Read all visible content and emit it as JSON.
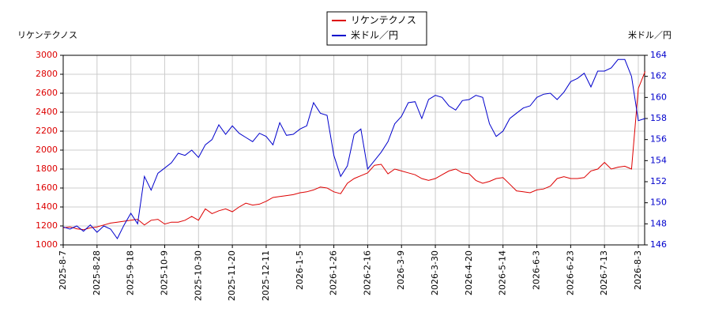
{
  "chart_data": {
    "type": "line",
    "y_label": "リケンテクノス",
    "y2_label": "米ドル／円",
    "categories": [
      "2025-8-7",
      null,
      null,
      null,
      null,
      "2025-8-28",
      null,
      null,
      null,
      null,
      "2025-9-18",
      null,
      null,
      null,
      null,
      "2025-10-9",
      null,
      null,
      null,
      null,
      "2025-10-30",
      null,
      null,
      null,
      null,
      "2025-11-20",
      null,
      null,
      null,
      null,
      "2025-12-11",
      null,
      null,
      null,
      null,
      "2026-1-5",
      null,
      null,
      null,
      null,
      "2026-1-26",
      null,
      null,
      null,
      null,
      "2026-2-16",
      null,
      null,
      null,
      null,
      "2026-3-9",
      null,
      null,
      null,
      null,
      "2026-3-30",
      null,
      null,
      null,
      null,
      "2026-4-20",
      null,
      null,
      null,
      null,
      "2026-5-14",
      null,
      null,
      null,
      null,
      "2026-6-3",
      null,
      null,
      null,
      null,
      "2026-6-23",
      null,
      null,
      null,
      null,
      "2026-7-13",
      null,
      null,
      null,
      null,
      "2026-8-3",
      null
    ],
    "series": [
      {
        "name": "リケンテクノス",
        "color": "#dd0000",
        "axis": "y",
        "values": [
          1180,
          1190,
          1170,
          1160,
          1180,
          1190,
          1210,
          1230,
          1240,
          1250,
          1260,
          1270,
          1210,
          1260,
          1270,
          1220,
          1240,
          1240,
          1260,
          1300,
          1260,
          1380,
          1330,
          1360,
          1380,
          1350,
          1400,
          1440,
          1420,
          1430,
          1460,
          1500,
          1510,
          1520,
          1530,
          1550,
          1560,
          1580,
          1610,
          1600,
          1560,
          1540,
          1650,
          1700,
          1730,
          1760,
          1840,
          1850,
          1750,
          1800,
          1780,
          1760,
          1740,
          1700,
          1680,
          1700,
          1740,
          1780,
          1800,
          1760,
          1750,
          1680,
          1650,
          1670,
          1700,
          1710,
          1640,
          1570,
          1560,
          1550,
          1580,
          1590,
          1620,
          1700,
          1720,
          1700,
          1700,
          1710,
          1780,
          1800,
          1870,
          1800,
          1820,
          1830,
          1800,
          2650,
          2830
        ]
      },
      {
        "name": "米ドル／円",
        "color": "#0000cc",
        "axis": "y2",
        "values": [
          147.7,
          147.5,
          147.8,
          147.3,
          147.9,
          147.2,
          147.8,
          147.5,
          146.6,
          147.9,
          149.0,
          148.0,
          152.5,
          151.2,
          152.8,
          153.3,
          153.8,
          154.7,
          154.5,
          155.0,
          154.3,
          155.5,
          156.0,
          157.4,
          156.5,
          157.3,
          156.6,
          156.2,
          155.8,
          156.6,
          156.3,
          155.5,
          157.6,
          156.4,
          156.5,
          157.0,
          157.3,
          159.5,
          158.5,
          158.3,
          154.5,
          152.5,
          153.5,
          156.5,
          157.0,
          153.2,
          154.0,
          154.8,
          155.8,
          157.5,
          158.2,
          159.5,
          159.6,
          158.0,
          159.8,
          160.2,
          160.0,
          159.2,
          158.8,
          159.7,
          159.8,
          160.2,
          160.0,
          157.5,
          156.3,
          156.8,
          158.0,
          158.5,
          159.0,
          159.2,
          160.0,
          160.3,
          160.4,
          159.8,
          160.5,
          161.5,
          161.8,
          162.3,
          161.0,
          162.5,
          162.5,
          162.8,
          163.6,
          163.6,
          162.0,
          157.8,
          158.0
        ]
      }
    ],
    "ylim": [
      1000,
      3000
    ],
    "yticks": [
      1000,
      1200,
      1400,
      1600,
      1800,
      2000,
      2200,
      2400,
      2600,
      2800,
      3000
    ],
    "y2lim": [
      146,
      164
    ],
    "y2ticks": [
      146,
      148,
      150,
      152,
      154,
      156,
      158,
      160,
      162,
      164
    ],
    "grid": true,
    "legend": "top"
  }
}
